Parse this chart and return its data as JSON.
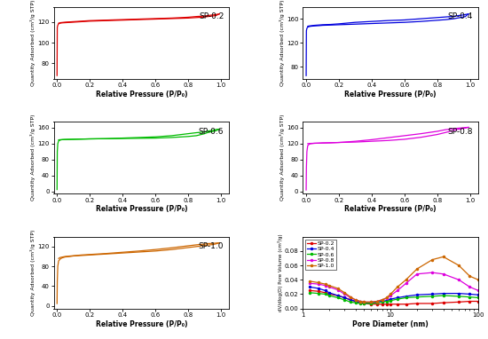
{
  "panels": [
    {
      "label": "SP-0.2",
      "color": "#dd0000",
      "yticks": [
        80,
        100,
        120
      ],
      "ylim": [
        65,
        135
      ],
      "adsorption_x": [
        0.0005,
        0.002,
        0.005,
        0.01,
        0.02,
        0.03,
        0.05,
        0.08,
        0.1,
        0.15,
        0.2,
        0.3,
        0.4,
        0.5,
        0.6,
        0.7,
        0.8,
        0.85,
        0.9,
        0.92,
        0.95,
        0.97,
        0.99
      ],
      "adsorption_y": [
        68,
        115,
        117,
        118.5,
        119,
        119.3,
        119.5,
        119.8,
        120.0,
        120.5,
        121.0,
        121.5,
        122.0,
        122.5,
        123.0,
        123.5,
        124.0,
        124.5,
        125.0,
        125.5,
        126.0,
        126.5,
        128.0
      ],
      "desorption_x": [
        0.99,
        0.97,
        0.95,
        0.92,
        0.9,
        0.85,
        0.8,
        0.7,
        0.6,
        0.5,
        0.4,
        0.3,
        0.2,
        0.15,
        0.1,
        0.05,
        0.02,
        0.01
      ],
      "desorption_y": [
        128.0,
        127.5,
        127.0,
        126.5,
        126.0,
        125.5,
        124.8,
        124.0,
        123.5,
        123.0,
        122.5,
        122.0,
        121.5,
        121.0,
        120.5,
        120.0,
        119.5,
        119.0
      ]
    },
    {
      "label": "SP-0.4",
      "color": "#0000dd",
      "yticks": [
        80,
        120,
        160
      ],
      "ylim": [
        60,
        180
      ],
      "adsorption_x": [
        0.0005,
        0.002,
        0.005,
        0.01,
        0.02,
        0.03,
        0.05,
        0.08,
        0.1,
        0.15,
        0.2,
        0.3,
        0.4,
        0.5,
        0.6,
        0.7,
        0.8,
        0.85,
        0.9,
        0.92,
        0.95,
        0.97,
        0.99
      ],
      "adsorption_y": [
        65,
        140,
        144,
        146,
        147,
        147.5,
        148.0,
        148.5,
        149.0,
        149.5,
        150.0,
        151.0,
        152.0,
        153.0,
        154.0,
        155.5,
        157.5,
        158.5,
        160.0,
        161.0,
        162.5,
        163.5,
        168.0
      ],
      "desorption_x": [
        0.99,
        0.97,
        0.95,
        0.92,
        0.9,
        0.85,
        0.8,
        0.7,
        0.6,
        0.5,
        0.4,
        0.3,
        0.2,
        0.15,
        0.1,
        0.05,
        0.02,
        0.01
      ],
      "desorption_y": [
        168.0,
        167.0,
        166.0,
        165.0,
        164.0,
        163.0,
        162.0,
        160.0,
        158.0,
        157.0,
        155.5,
        154.0,
        151.5,
        150.5,
        150.0,
        149.0,
        148.0,
        147.5
      ]
    },
    {
      "label": "SP-0.6",
      "color": "#00bb00",
      "yticks": [
        0,
        40,
        80,
        120,
        160
      ],
      "ylim": [
        -5,
        175
      ],
      "adsorption_x": [
        0.0005,
        0.002,
        0.005,
        0.01,
        0.02,
        0.03,
        0.05,
        0.08,
        0.1,
        0.15,
        0.2,
        0.3,
        0.4,
        0.5,
        0.6,
        0.7,
        0.8,
        0.85,
        0.9,
        0.92,
        0.95,
        0.97,
        0.99
      ],
      "adsorption_y": [
        5,
        100,
        120,
        127,
        129,
        130,
        130.5,
        130.8,
        131.0,
        131.5,
        132.0,
        132.5,
        133.0,
        133.5,
        134.0,
        135.5,
        138.0,
        140.0,
        145.0,
        148.0,
        150.5,
        152.5,
        156.5
      ],
      "desorption_x": [
        0.99,
        0.97,
        0.95,
        0.92,
        0.9,
        0.85,
        0.8,
        0.7,
        0.6,
        0.5,
        0.4,
        0.3,
        0.2,
        0.15,
        0.1,
        0.05,
        0.02,
        0.01
      ],
      "desorption_y": [
        156.5,
        155.5,
        153.5,
        151.5,
        149.5,
        147.5,
        145.0,
        140.0,
        137.0,
        135.5,
        134.0,
        132.5,
        132.0,
        131.5,
        131.0,
        130.5,
        130.0,
        129.5
      ]
    },
    {
      "label": "SP-0.8",
      "color": "#dd00dd",
      "yticks": [
        0,
        40,
        80,
        120,
        160
      ],
      "ylim": [
        -5,
        175
      ],
      "adsorption_x": [
        0.0005,
        0.002,
        0.005,
        0.01,
        0.02,
        0.03,
        0.05,
        0.08,
        0.1,
        0.15,
        0.2,
        0.3,
        0.4,
        0.5,
        0.6,
        0.7,
        0.8,
        0.85,
        0.9,
        0.92,
        0.95,
        0.97,
        0.99
      ],
      "adsorption_y": [
        4,
        60,
        100,
        115,
        119,
        120,
        121,
        121.5,
        122.0,
        122.5,
        123.0,
        124.0,
        126.0,
        128.0,
        131.0,
        136.0,
        143.0,
        148.0,
        153.0,
        155.5,
        157.5,
        159.0,
        161.0
      ],
      "desorption_x": [
        0.99,
        0.97,
        0.95,
        0.92,
        0.9,
        0.85,
        0.8,
        0.7,
        0.6,
        0.5,
        0.4,
        0.3,
        0.2,
        0.15,
        0.1,
        0.05,
        0.02,
        0.01
      ],
      "desorption_y": [
        161.0,
        160.5,
        159.5,
        158.5,
        157.5,
        155.0,
        151.0,
        145.0,
        140.0,
        135.0,
        130.0,
        126.0,
        123.0,
        122.0,
        121.5,
        121.0,
        120.5,
        120.0
      ]
    },
    {
      "label": "SP-1.0",
      "color": "#cc6600",
      "yticks": [
        0,
        40,
        80,
        120
      ],
      "ylim": [
        -5,
        140
      ],
      "adsorption_x": [
        0.0005,
        0.002,
        0.005,
        0.01,
        0.02,
        0.03,
        0.05,
        0.08,
        0.1,
        0.15,
        0.2,
        0.3,
        0.4,
        0.5,
        0.6,
        0.7,
        0.8,
        0.85,
        0.9,
        0.92,
        0.95,
        0.97,
        0.99
      ],
      "adsorption_y": [
        5,
        50,
        80,
        91,
        95,
        97,
        99,
        100,
        101,
        102,
        103,
        105,
        107,
        109,
        111,
        114,
        118,
        120,
        122,
        123,
        124,
        125.5,
        127.5
      ],
      "desorption_x": [
        0.99,
        0.97,
        0.95,
        0.92,
        0.9,
        0.85,
        0.8,
        0.7,
        0.6,
        0.5,
        0.4,
        0.3,
        0.2,
        0.15,
        0.1,
        0.05,
        0.02,
        0.01
      ],
      "desorption_y": [
        127.5,
        127.0,
        126.5,
        126.0,
        125.0,
        123.5,
        121.5,
        117.5,
        114.0,
        111.0,
        108.5,
        106.0,
        104.0,
        103.0,
        101.5,
        100.0,
        98.0,
        96.0
      ]
    }
  ],
  "pore_data": {
    "colors": [
      "#dd0000",
      "#0000dd",
      "#00bb00",
      "#dd00dd",
      "#cc6600"
    ],
    "labels": [
      "SP-0.2",
      "SP-0.4",
      "SP-0.6",
      "SP-0.8",
      "SP-1.0"
    ],
    "x": [
      1.2,
      1.5,
      1.8,
      2.0,
      2.5,
      3.0,
      3.5,
      4.0,
      4.5,
      5.0,
      6.0,
      7.0,
      8.0,
      9.0,
      10.0,
      12.0,
      15.0,
      20.0,
      30.0,
      40.0,
      60.0,
      80.0,
      100.0
    ],
    "series": [
      [
        0.025,
        0.024,
        0.022,
        0.02,
        0.018,
        0.015,
        0.012,
        0.01,
        0.008,
        0.007,
        0.006,
        0.006,
        0.006,
        0.006,
        0.006,
        0.006,
        0.006,
        0.007,
        0.007,
        0.008,
        0.009,
        0.01,
        0.01
      ],
      [
        0.03,
        0.028,
        0.025,
        0.022,
        0.018,
        0.015,
        0.012,
        0.01,
        0.009,
        0.008,
        0.008,
        0.009,
        0.01,
        0.011,
        0.013,
        0.015,
        0.017,
        0.019,
        0.02,
        0.021,
        0.021,
        0.02,
        0.019
      ],
      [
        0.022,
        0.021,
        0.02,
        0.018,
        0.015,
        0.012,
        0.009,
        0.008,
        0.007,
        0.007,
        0.007,
        0.008,
        0.009,
        0.01,
        0.011,
        0.013,
        0.015,
        0.016,
        0.017,
        0.018,
        0.017,
        0.016,
        0.015
      ],
      [
        0.035,
        0.034,
        0.032,
        0.03,
        0.026,
        0.02,
        0.015,
        0.012,
        0.01,
        0.009,
        0.009,
        0.01,
        0.012,
        0.014,
        0.018,
        0.025,
        0.035,
        0.048,
        0.05,
        0.048,
        0.04,
        0.03,
        0.025
      ],
      [
        0.038,
        0.036,
        0.034,
        0.032,
        0.028,
        0.022,
        0.016,
        0.012,
        0.01,
        0.009,
        0.009,
        0.01,
        0.012,
        0.015,
        0.02,
        0.03,
        0.04,
        0.055,
        0.068,
        0.072,
        0.06,
        0.045,
        0.04
      ]
    ]
  },
  "xlabel_adsorption": "Relative Pressure (P/P₀)",
  "ylabel_adsorption": "Quantity Adsorbed (cm³/g STP)",
  "xlabel_pore": "Pore Diameter (nm)",
  "ylabel_pore": "dV/dlog(D) Pore Volume (cm³/g)",
  "xticks_adsorption": [
    0.0,
    0.2,
    0.4,
    0.6,
    0.8,
    1.0
  ],
  "xlim_adsorption": [
    -0.02,
    1.05
  ],
  "pore_xlim": [
    1.0,
    100.0
  ],
  "pore_ylim": [
    0.0,
    0.1
  ],
  "pore_yticks": [
    0.0,
    0.02,
    0.04,
    0.06,
    0.08
  ]
}
